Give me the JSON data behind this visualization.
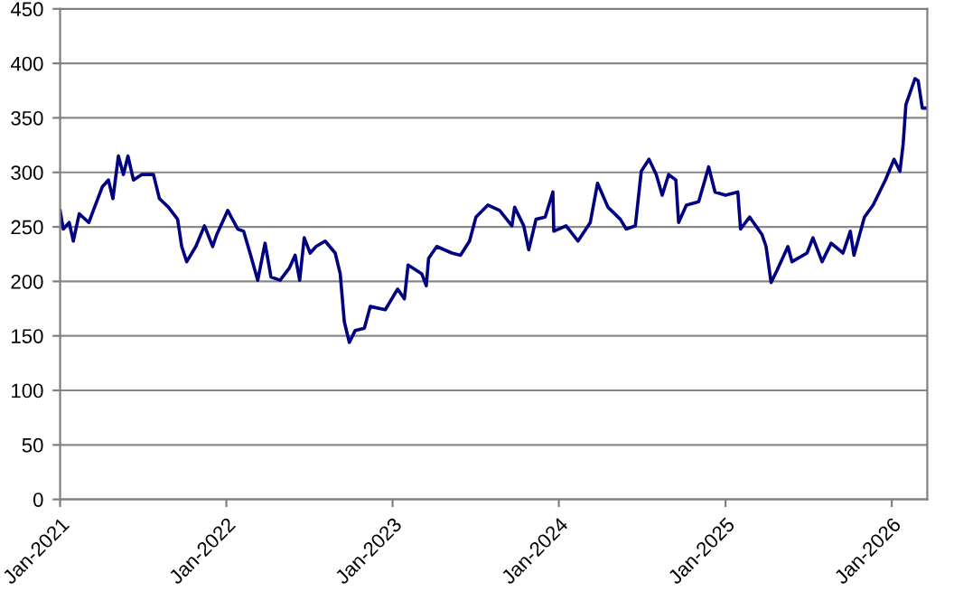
{
  "chart_data": {
    "type": "line",
    "legend": false,
    "grid": "y",
    "marker": "none",
    "line_style": "solid",
    "xlim": [
      "2021-01-01",
      "2026-03-20"
    ],
    "xticks": [
      {
        "value": "2021-01-01",
        "label": "Jan-2021"
      },
      {
        "value": "2022-01-01",
        "label": "Jan-2022"
      },
      {
        "value": "2023-01-01",
        "label": "Jan-2023"
      },
      {
        "value": "2024-01-01",
        "label": "Jan-2024"
      },
      {
        "value": "2025-01-01",
        "label": "Jan-2025"
      },
      {
        "value": "2026-01-01",
        "label": "Jan-2026"
      }
    ],
    "ylim": [
      0,
      450
    ],
    "yticks": [
      0,
      50,
      100,
      150,
      200,
      250,
      300,
      350,
      400,
      450
    ],
    "series": [
      {
        "color": "#000080",
        "x": [
          "2021-01-01",
          "2021-01-08",
          "2021-01-21",
          "2021-01-30",
          "2021-02-12",
          "2021-03-05",
          "2021-03-15",
          "2021-04-04",
          "2021-04-17",
          "2021-04-27",
          "2021-05-09",
          "2021-05-20",
          "2021-05-30",
          "2021-06-11",
          "2021-06-29",
          "2021-07-25",
          "2021-08-07",
          "2021-08-27",
          "2021-09-16",
          "2021-09-25",
          "2021-10-06",
          "2021-10-26",
          "2021-11-14",
          "2021-12-02",
          "2021-12-11",
          "2022-01-04",
          "2022-01-26",
          "2022-02-08",
          "2022-02-22",
          "2022-03-11",
          "2022-03-27",
          "2022-04-09",
          "2022-04-29",
          "2022-05-19",
          "2022-06-01",
          "2022-06-11",
          "2022-06-21",
          "2022-07-04",
          "2022-07-17",
          "2022-08-06",
          "2022-08-28",
          "2022-09-08",
          "2022-09-17",
          "2022-09-28",
          "2022-10-11",
          "2022-10-31",
          "2022-11-13",
          "2022-12-16",
          "2023-01-12",
          "2023-01-27",
          "2023-02-04",
          "2023-03-06",
          "2023-03-16",
          "2023-03-21",
          "2023-04-08",
          "2023-05-11",
          "2023-05-30",
          "2023-06-19",
          "2023-07-03",
          "2023-07-29",
          "2023-08-24",
          "2023-09-20",
          "2023-09-26",
          "2023-10-16",
          "2023-10-27",
          "2023-11-12",
          "2023-12-02",
          "2023-12-19",
          "2023-12-21",
          "2024-01-17",
          "2024-02-12",
          "2024-03-10",
          "2024-03-26",
          "2024-04-18",
          "2024-05-15",
          "2024-05-28",
          "2024-06-17",
          "2024-06-30",
          "2024-07-17",
          "2024-08-02",
          "2024-08-15",
          "2024-08-29",
          "2024-09-14",
          "2024-09-20",
          "2024-10-07",
          "2024-11-03",
          "2024-11-25",
          "2024-12-09",
          "2025-01-01",
          "2025-01-28",
          "2025-02-03",
          "2025-02-23",
          "2025-03-22",
          "2025-03-31",
          "2025-04-11",
          "2025-04-24",
          "2025-05-18",
          "2025-05-27",
          "2025-06-29",
          "2025-07-12",
          "2025-08-01",
          "2025-08-21",
          "2025-09-16",
          "2025-10-02",
          "2025-10-10",
          "2025-11-02",
          "2025-11-21",
          "2025-12-18",
          "2026-01-06",
          "2026-01-19",
          "2026-01-26",
          "2026-02-01",
          "2026-02-21",
          "2026-02-28",
          "2026-03-09",
          "2026-03-20"
        ],
        "values": [
          265,
          248,
          254,
          237,
          262,
          254,
          265,
          287,
          293,
          276,
          315,
          298,
          315,
          293,
          298,
          298,
          276,
          268,
          257,
          232,
          218,
          232,
          251,
          232,
          243,
          265,
          248,
          246,
          226,
          201,
          235,
          204,
          201,
          212,
          224,
          201,
          240,
          226,
          232,
          237,
          226,
          207,
          163,
          144,
          155,
          157,
          177,
          174,
          193,
          184,
          215,
          207,
          196,
          221,
          232,
          226,
          224,
          237,
          259,
          270,
          265,
          251,
          268,
          251,
          229,
          257,
          259,
          282,
          246,
          251,
          237,
          254,
          290,
          268,
          257,
          248,
          251,
          301,
          312,
          298,
          279,
          298,
          293,
          254,
          270,
          273,
          305,
          282,
          279,
          282,
          248,
          259,
          243,
          232,
          199,
          210,
          232,
          218,
          226,
          240,
          218,
          235,
          226,
          246,
          224,
          259,
          270,
          293,
          312,
          301,
          326,
          362,
          386,
          384,
          359,
          359
        ]
      }
    ]
  }
}
